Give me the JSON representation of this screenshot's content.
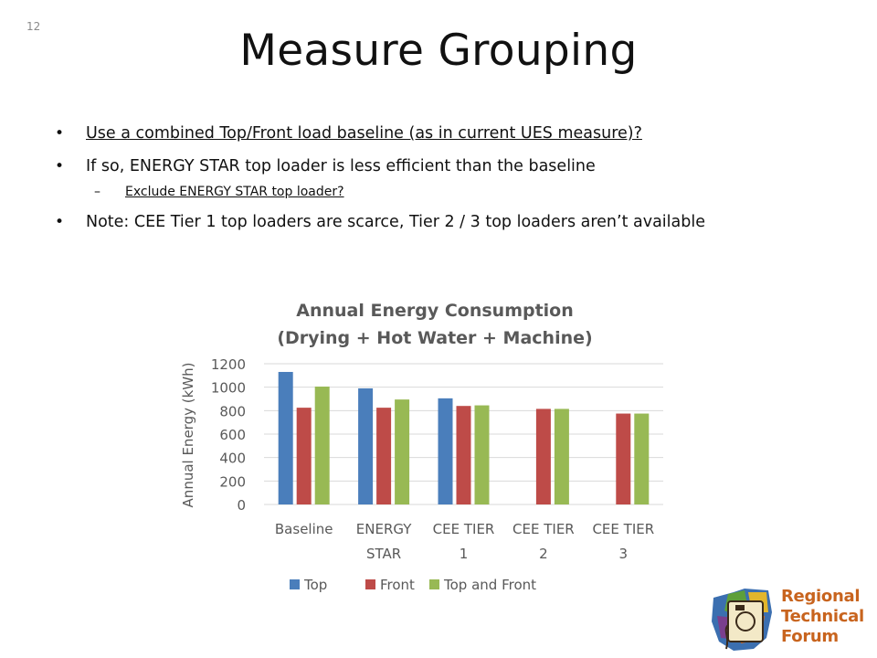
{
  "page_number": "12",
  "title": "Measure Grouping",
  "bullets": [
    {
      "text": "Use a combined Top/Front load baseline (as in current UES measure)?",
      "underline": true
    },
    {
      "text": "If so, ENERGY STAR top loader is less efficient than the baseline",
      "underline": false
    },
    {
      "text": "Note: CEE Tier 1 top loaders are scarce, Tier 2 / 3 top loaders aren’t available",
      "underline": false
    }
  ],
  "sub_bullet": {
    "text": "Exclude ENERGY STAR top loader?"
  },
  "chart_data": {
    "type": "bar",
    "title": "Annual Energy Consumption",
    "subtitle": "(Drying + Hot Water + Machine)",
    "ylabel": "Annual Energy (kWh)",
    "xlabel": "",
    "ylim": [
      0,
      1200
    ],
    "yticks": [
      0,
      200,
      400,
      600,
      800,
      1000,
      1200
    ],
    "grid": true,
    "legend_position": "bottom",
    "categories": [
      [
        "Baseline"
      ],
      [
        "ENERGY",
        "STAR"
      ],
      [
        "CEE TIER",
        "1"
      ],
      [
        "CEE TIER",
        "2"
      ],
      [
        "CEE TIER",
        "3"
      ]
    ],
    "series": [
      {
        "name": "Top",
        "color": "#4a7ebb",
        "values": [
          1130,
          990,
          905,
          null,
          null
        ]
      },
      {
        "name": "Front",
        "color": "#be4b48",
        "values": [
          825,
          825,
          840,
          815,
          775
        ]
      },
      {
        "name": "Top and Front",
        "color": "#98b954",
        "values": [
          1005,
          895,
          845,
          815,
          775
        ]
      }
    ]
  },
  "logo": {
    "lines": [
      "Regional",
      "Technical",
      "Forum"
    ],
    "color": "#c8641e"
  }
}
